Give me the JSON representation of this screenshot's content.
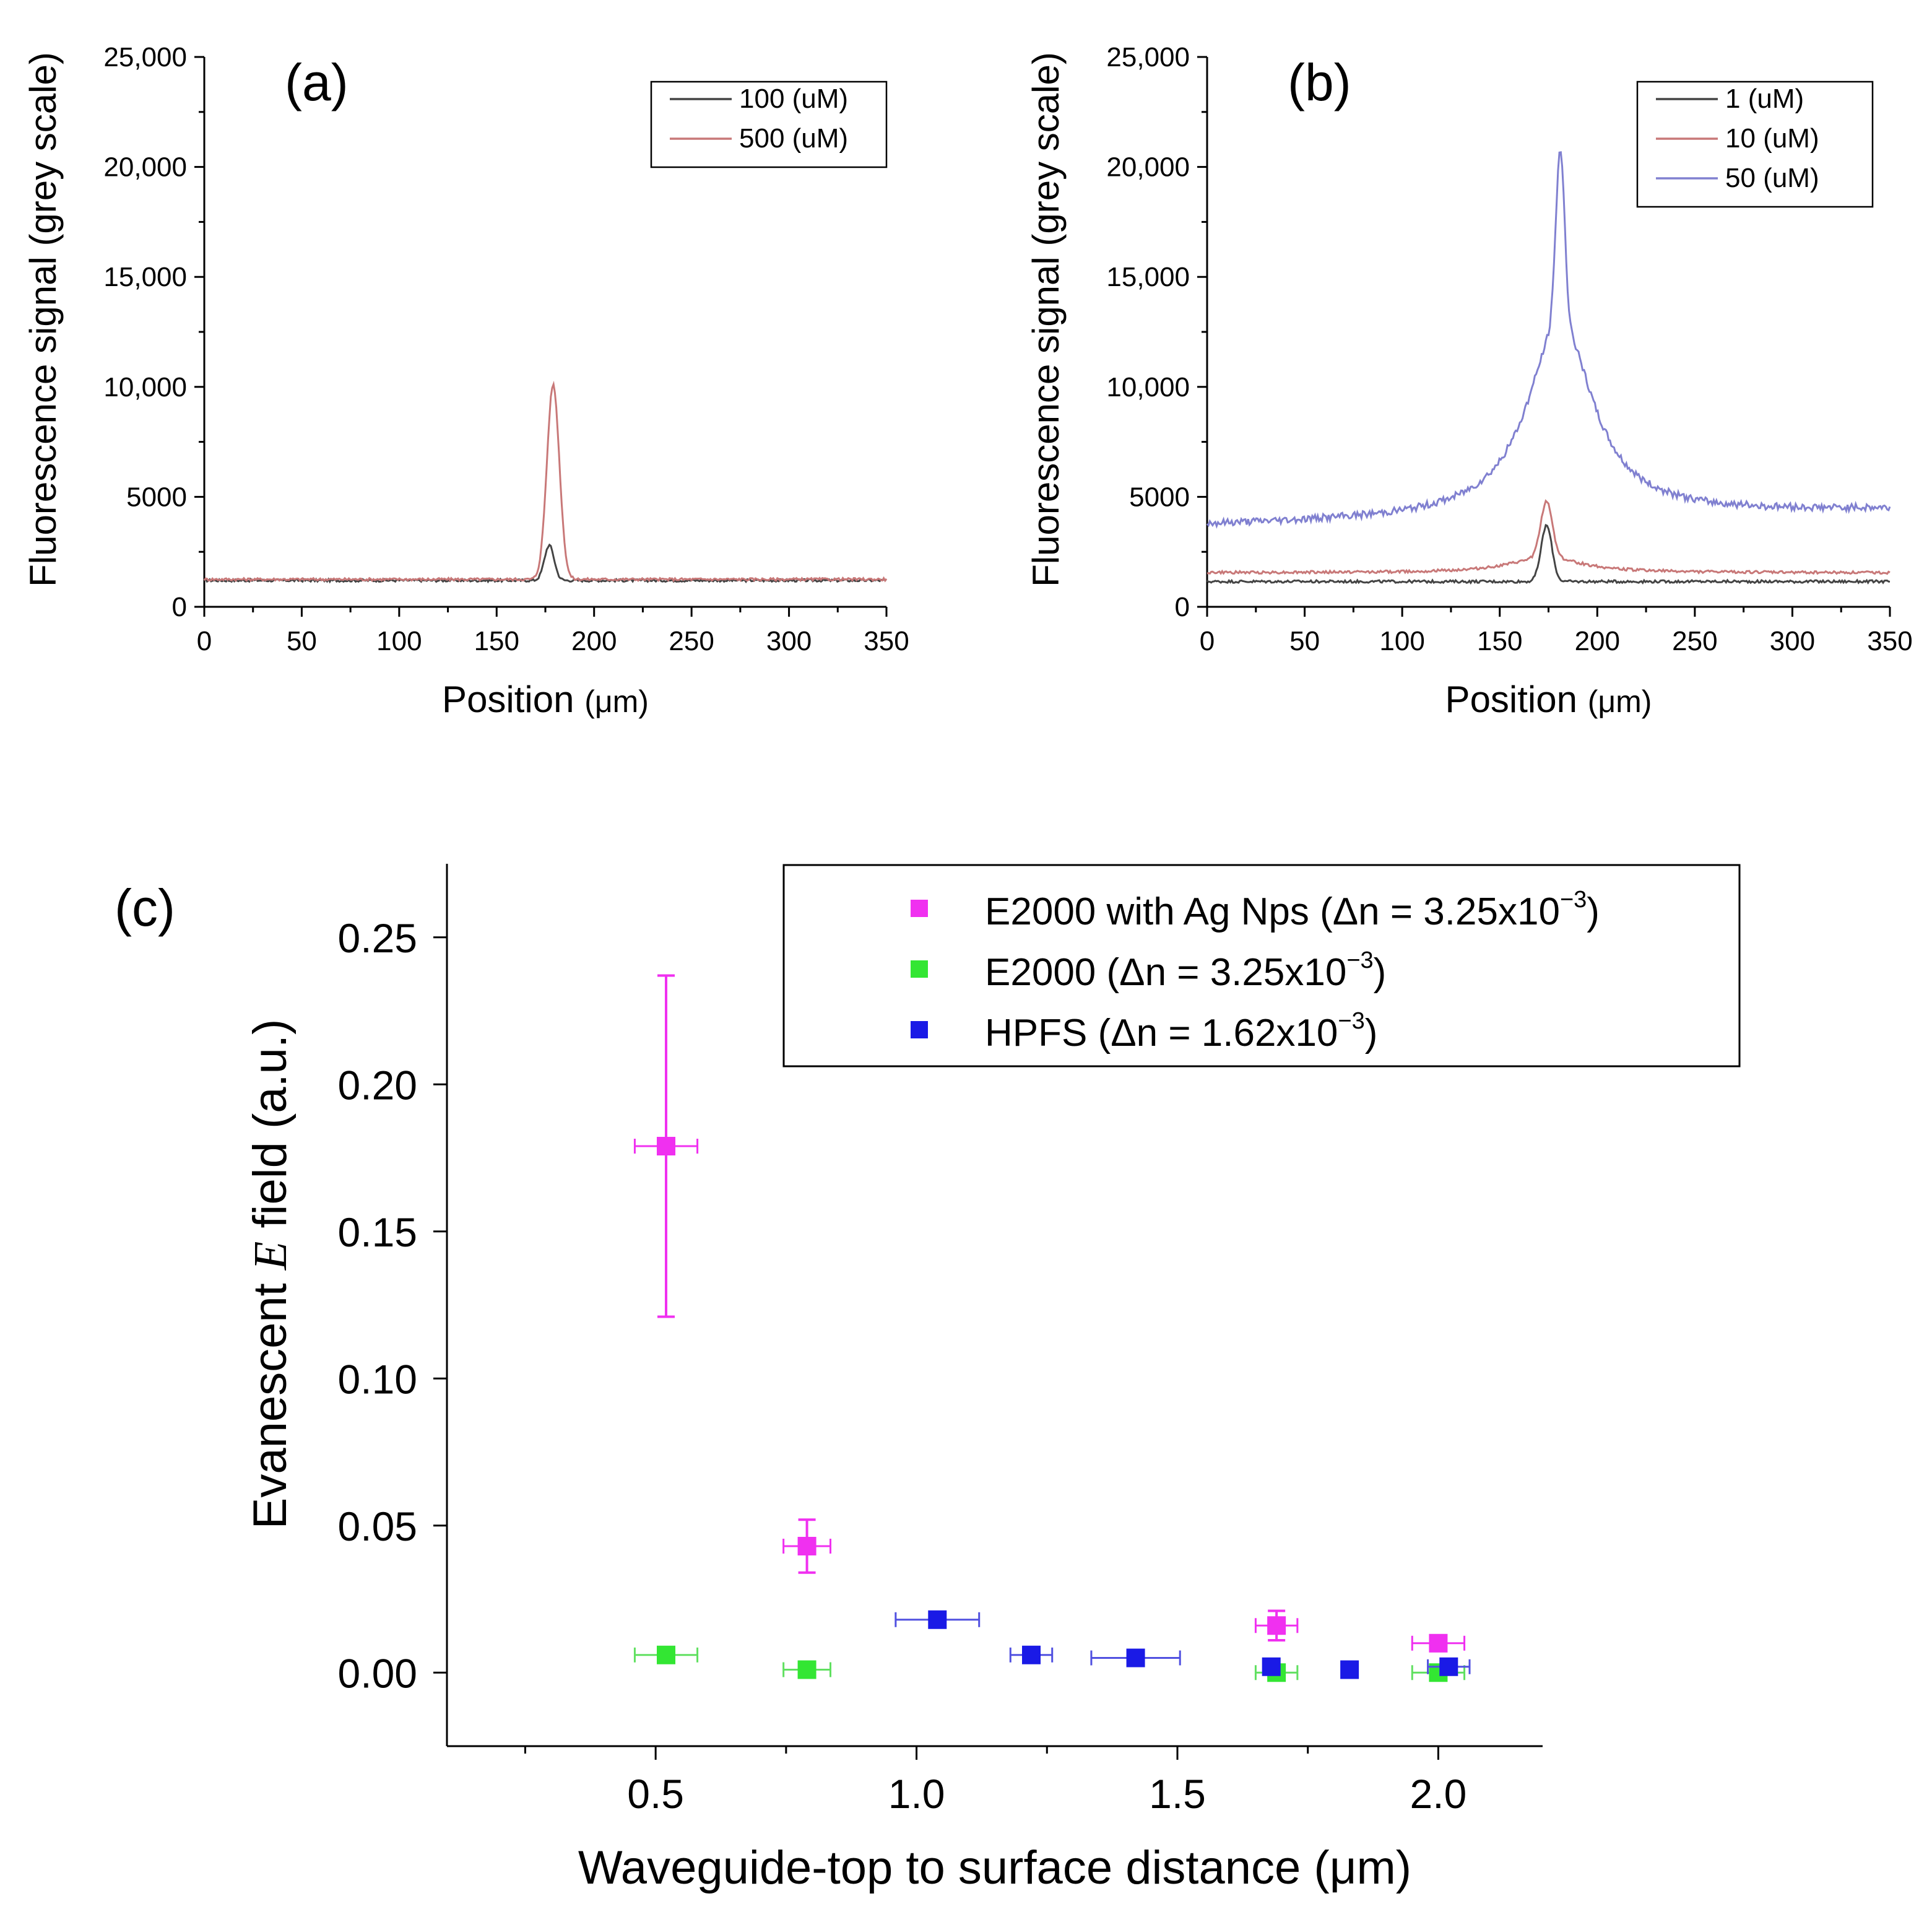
{
  "figure": {
    "colors": {
      "black_series": "#444444",
      "red_series": "#c87878",
      "blue_series": "#8080d0",
      "magenta": "#f030f0",
      "green": "#33e633",
      "blue": "#1a1ae6",
      "green_err": "#60e060",
      "blue_err": "#5050e0"
    }
  },
  "chart_data": [
    {
      "id": "a",
      "type": "line",
      "panel_label": "(a)",
      "xlabel": "Position",
      "xunit": "(μm)",
      "ylabel": "Fluorescence signal (grey scale)",
      "xlim": [
        0,
        350
      ],
      "ylim": [
        0,
        25000
      ],
      "xticks": [
        0,
        50,
        100,
        150,
        200,
        250,
        300,
        350
      ],
      "xtick_labels": [
        "0",
        "50",
        "100",
        "150",
        "200",
        "250",
        "300",
        "350"
      ],
      "yticks": [
        0,
        5000,
        10000,
        15000,
        20000,
        25000
      ],
      "ytick_labels": [
        "0",
        "5000",
        "10,000",
        "15,000",
        "20,000",
        "25,000"
      ],
      "legend_position": "top-right",
      "series": [
        {
          "name": "100 (uM)",
          "color": "#444444",
          "baseline": 1200,
          "peak_x": 177,
          "peak": 2800,
          "width": 2.5,
          "lorentz_amp": 0,
          "lorentz_gamma": 0,
          "slope": 0
        },
        {
          "name": "500 (uM)",
          "color": "#c87878",
          "baseline": 1250,
          "peak_x": 179,
          "peak": 10100,
          "width": 3.2,
          "lorentz_amp": 0,
          "lorentz_gamma": 0,
          "slope": 0
        }
      ]
    },
    {
      "id": "b",
      "type": "line",
      "panel_label": "(b)",
      "xlabel": "Position",
      "xunit": "(μm)",
      "ylabel": "Fluorescence signal (grey scale)",
      "xlim": [
        0,
        350
      ],
      "ylim": [
        0,
        25000
      ],
      "xticks": [
        0,
        50,
        100,
        150,
        200,
        250,
        300,
        350
      ],
      "xtick_labels": [
        "0",
        "50",
        "100",
        "150",
        "200",
        "250",
        "300",
        "350"
      ],
      "yticks": [
        0,
        5000,
        10000,
        15000,
        20000,
        25000
      ],
      "ytick_labels": [
        "0",
        "5000",
        "10,000",
        "15,000",
        "20,000",
        "25,000"
      ],
      "legend_position": "top-right",
      "series": [
        {
          "name": "1 (uM)",
          "color": "#444444",
          "baseline": 1150,
          "peak_x": 174,
          "peak": 3700,
          "width": 2.8,
          "lorentz_amp": 0,
          "lorentz_gamma": 0,
          "slope": 0
        },
        {
          "name": "10 (uM)",
          "color": "#c87878",
          "baseline": 1550,
          "peak_x": 174,
          "peak": 4800,
          "width": 3.0,
          "lorentz_amp": 700,
          "lorentz_gamma": 22,
          "slope": 0
        },
        {
          "name": "50 (uM)",
          "color": "#8080d0",
          "baseline": 3700,
          "peak_x": 181,
          "peak": 20800,
          "width": 2.2,
          "lorentz_amp": 9000,
          "lorentz_gamma": 20,
          "slope": 2.0
        }
      ]
    },
    {
      "id": "c",
      "type": "scatter",
      "panel_label": "(c)",
      "xlabel": "Waveguide-top to surface distance (μm)",
      "ylabel_parts": [
        "Evanescent ",
        "E",
        " field (a.u.)"
      ],
      "xlim": [
        0.1,
        2.2
      ],
      "ylim": [
        -0.025,
        0.275
      ],
      "xticks": [
        0.5,
        1.0,
        1.5,
        2.0
      ],
      "xtick_labels": [
        "0.5",
        "1.0",
        "1.5",
        "2.0"
      ],
      "minor_xticks": [
        0.25,
        0.75,
        1.25,
        1.75
      ],
      "yticks": [
        0.0,
        0.05,
        0.1,
        0.15,
        0.2,
        0.25
      ],
      "ytick_labels": [
        "0.00",
        "0.05",
        "0.10",
        "0.15",
        "0.20",
        "0.25"
      ],
      "legend_position": "top-right",
      "series": [
        {
          "name": "E2000  with  Ag Nps (Δn = 3.25x10",
          "exponent": "−3",
          "close": ")",
          "color": "#f030f0",
          "points": [
            {
              "x": 0.52,
              "y": 0.179,
              "xerr": 0.06,
              "yerr": 0.058
            },
            {
              "x": 0.79,
              "y": 0.043,
              "xerr": 0.045,
              "yerr": 0.009
            },
            {
              "x": 1.69,
              "y": 0.016,
              "xerr": 0.04,
              "yerr": 0.005
            },
            {
              "x": 2.0,
              "y": 0.01,
              "xerr": 0.05,
              "yerr": 0.0
            }
          ]
        },
        {
          "name": "E2000 (Δn = 3.25x10",
          "exponent": "−3",
          "close": ")",
          "color": "#33e633",
          "points": [
            {
              "x": 0.52,
              "y": 0.006,
              "xerr": 0.06,
              "yerr": 0.0
            },
            {
              "x": 0.79,
              "y": 0.001,
              "xerr": 0.045,
              "yerr": 0.0
            },
            {
              "x": 1.69,
              "y": 0.0,
              "xerr": 0.04,
              "yerr": 0.0
            },
            {
              "x": 2.0,
              "y": 0.0,
              "xerr": 0.05,
              "yerr": 0.0
            }
          ]
        },
        {
          "name": "HPFS (Δn = 1.62x10",
          "exponent": "−3",
          "close": ")",
          "color": "#1a1ae6",
          "points": [
            {
              "x": 1.04,
              "y": 0.018,
              "xerr": 0.08,
              "yerr": 0.0
            },
            {
              "x": 1.22,
              "y": 0.006,
              "xerr": 0.04,
              "yerr": 0.0
            },
            {
              "x": 1.42,
              "y": 0.005,
              "xerr": 0.085,
              "yerr": 0.0
            },
            {
              "x": 1.68,
              "y": 0.002,
              "xerr": 0.0,
              "yerr": 0.0
            },
            {
              "x": 1.83,
              "y": 0.001,
              "xerr": 0.0,
              "yerr": 0.0
            },
            {
              "x": 2.02,
              "y": 0.002,
              "xerr": 0.04,
              "yerr": 0.0
            }
          ]
        }
      ]
    }
  ]
}
